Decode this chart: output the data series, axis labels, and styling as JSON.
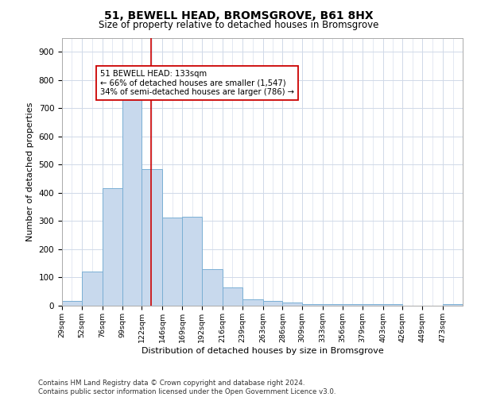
{
  "title": "51, BEWELL HEAD, BROMSGROVE, B61 8HX",
  "subtitle": "Size of property relative to detached houses in Bromsgrove",
  "xlabel": "Distribution of detached houses by size in Bromsgrove",
  "ylabel": "Number of detached properties",
  "bar_color": "#c8d9ed",
  "bar_edge_color": "#7aafd4",
  "background_color": "#ffffff",
  "grid_color": "#d0d9e8",
  "vline_x": 133,
  "vline_color": "#cc0000",
  "annotation_text": "51 BEWELL HEAD: 133sqm\n← 66% of detached houses are smaller (1,547)\n34% of semi-detached houses are larger (786) →",
  "annotation_box_color": "#ffffff",
  "annotation_box_edge": "#cc0000",
  "bin_edges": [
    29,
    52,
    76,
    99,
    122,
    146,
    169,
    192,
    216,
    239,
    263,
    286,
    309,
    333,
    356,
    379,
    403,
    426,
    449,
    473,
    496
  ],
  "bar_heights": [
    18,
    120,
    418,
    733,
    483,
    313,
    316,
    130,
    65,
    22,
    18,
    10,
    5,
    5,
    5,
    5,
    5,
    0,
    0,
    5
  ],
  "ylim": [
    0,
    950
  ],
  "yticks": [
    0,
    100,
    200,
    300,
    400,
    500,
    600,
    700,
    800,
    900
  ],
  "footer_text": "Contains HM Land Registry data © Crown copyright and database right 2024.\nContains public sector information licensed under the Open Government Licence v3.0.",
  "figsize": [
    6.0,
    5.0
  ],
  "dpi": 100
}
